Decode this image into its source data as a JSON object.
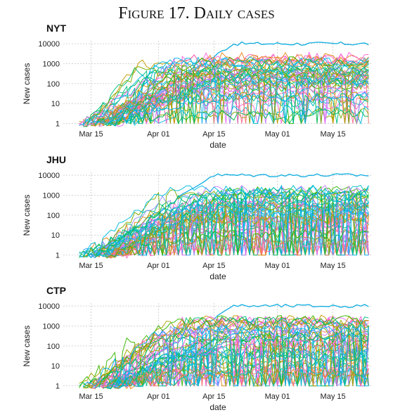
{
  "title": "Figure 17. Daily cases",
  "chart_data": [
    {
      "type": "line",
      "title": "NYT",
      "xlabel": "date",
      "ylabel": "New cases",
      "x_tick_labels": [
        "Mar 15",
        "Apr 01",
        "Apr 15",
        "May 01",
        "May 15"
      ],
      "x_tick_dates": [
        "2020-03-15",
        "2020-04-01",
        "2020-04-15",
        "2020-05-01",
        "2020-05-15"
      ],
      "xlim": [
        "2020-03-08",
        "2020-05-25"
      ],
      "y_tick_labels": [
        "1",
        "10",
        "100",
        "1000",
        "10000"
      ],
      "y_scale": "log",
      "ylim": [
        0.7,
        14000
      ],
      "grid": true,
      "legend": "none",
      "approx_series_count": 50,
      "top_series_peak": 10000
    },
    {
      "type": "line",
      "title": "JHU",
      "xlabel": "date",
      "ylabel": "New cases",
      "x_tick_labels": [
        "Mar 15",
        "Apr 01",
        "Apr 15",
        "May 01",
        "May 15"
      ],
      "x_tick_dates": [
        "2020-03-15",
        "2020-04-01",
        "2020-04-15",
        "2020-05-01",
        "2020-05-15"
      ],
      "xlim": [
        "2020-03-08",
        "2020-05-25"
      ],
      "y_tick_labels": [
        "1",
        "10",
        "100",
        "1000",
        "10000"
      ],
      "y_scale": "log",
      "ylim": [
        0.7,
        14000
      ],
      "grid": true,
      "legend": "none",
      "approx_series_count": 50,
      "top_series_peak": 10000
    },
    {
      "type": "line",
      "title": "CTP",
      "xlabel": "date",
      "ylabel": "New cases",
      "x_tick_labels": [
        "Mar 15",
        "Apr 01",
        "Apr 15",
        "May 01",
        "May 15"
      ],
      "x_tick_dates": [
        "2020-03-15",
        "2020-04-01",
        "2020-04-15",
        "2020-05-01",
        "2020-05-15"
      ],
      "xlim": [
        "2020-03-08",
        "2020-05-25"
      ],
      "y_tick_labels": [
        "1",
        "10",
        "100",
        "1000",
        "10000"
      ],
      "y_scale": "log",
      "ylim": [
        0.7,
        14000
      ],
      "grid": true,
      "legend": "none",
      "approx_series_count": 50,
      "top_series_peak": 10000
    }
  ],
  "colors": {
    "palette": [
      "#F8766D",
      "#E7861B",
      "#C49A00",
      "#A3A500",
      "#7CAE00",
      "#39B600",
      "#00BB4E",
      "#00BF7D",
      "#00C1A3",
      "#00BFC4",
      "#00BAE0",
      "#00B0F6",
      "#35A2FF",
      "#9590FF",
      "#C77CFF",
      "#E76BF3",
      "#FA62DB",
      "#FF62BC",
      "#FF6C91"
    ],
    "top_series": "#00A9E0",
    "grid": "#c8c8c8"
  }
}
